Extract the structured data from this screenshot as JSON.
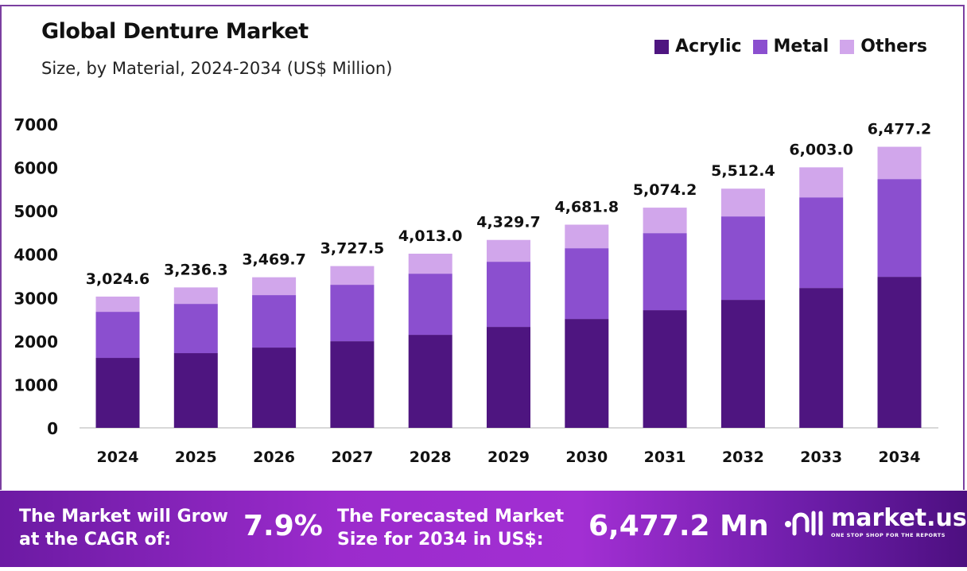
{
  "chart_data": {
    "type": "bar",
    "stacked": true,
    "title": "Global Denture Market",
    "subtitle": "Size, by Material, 2024-2034 (US$ Million)",
    "categories": [
      "2024",
      "2025",
      "2026",
      "2027",
      "2028",
      "2029",
      "2030",
      "2031",
      "2032",
      "2033",
      "2034"
    ],
    "series": [
      {
        "name": "Acrylic",
        "color": "#4e1580",
        "values": [
          1612,
          1722,
          1850,
          1996,
          2143,
          2326,
          2509,
          2711,
          2949,
          3223,
          3480
        ]
      },
      {
        "name": "Metal",
        "color": "#8b4fcf",
        "values": [
          1062,
          1135,
          1209,
          1301,
          1410,
          1502,
          1630,
          1776,
          1923,
          2088,
          2253
        ]
      },
      {
        "name": "Others",
        "color": "#d1a6eb",
        "values": [
          351,
          379,
          411,
          431,
          460,
          502,
          543,
          587,
          640,
          692,
          744
        ]
      }
    ],
    "totals": [
      3024.6,
      3236.3,
      3469.7,
      3727.5,
      4013.0,
      4329.7,
      4681.8,
      5074.2,
      5512.4,
      6003.0,
      6477.2
    ],
    "total_labels": [
      "3,024.6",
      "3,236.3",
      "3,469.7",
      "3,727.5",
      "4,013.0",
      "4,329.7",
      "4,681.8",
      "5,074.2",
      "5,512.4",
      "6,003.0",
      "6,477.2"
    ],
    "ylim": [
      0,
      7000
    ],
    "yticks": [
      "0",
      "1000",
      "2000",
      "3000",
      "4000",
      "5000",
      "6000",
      "7000"
    ],
    "xlabel": "",
    "ylabel": "",
    "grid": false,
    "legend": "top-right"
  },
  "banner": {
    "cagr_label_1": "The Market will Grow",
    "cagr_label_2": "at the CAGR of:",
    "cagr_value": "7.9%",
    "forecast_label_1": "The Forecasted Market",
    "forecast_label_2": "Size for 2034 in US$:",
    "forecast_value": "6,477.2 Mn",
    "logo_name": "market.us",
    "logo_tagline": "ONE STOP SHOP FOR THE REPORTS"
  }
}
